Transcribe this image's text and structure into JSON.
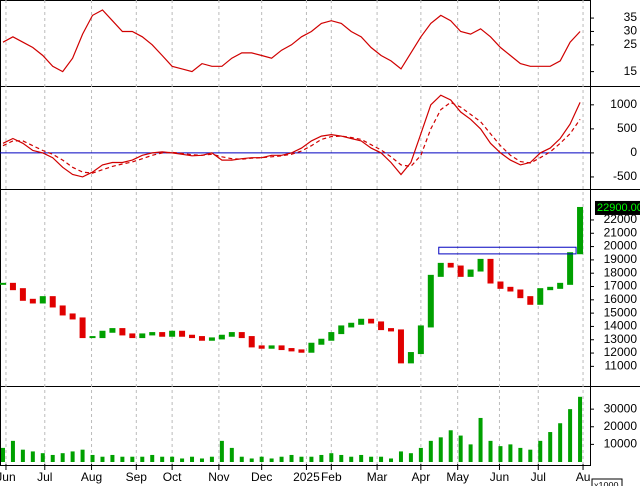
{
  "chart_data": [
    {
      "type": "line",
      "ylim": [
        10,
        41
      ],
      "yticks": [
        15,
        25,
        30,
        35
      ],
      "series": [
        {
          "color": "#d00000",
          "values": [
            26,
            28,
            26,
            24,
            21,
            17,
            15,
            20,
            29,
            36,
            38,
            34,
            30,
            30,
            28,
            25,
            21,
            17,
            16,
            15,
            18,
            17,
            17,
            20,
            22,
            22,
            21,
            20,
            23,
            25,
            28,
            30,
            33,
            34,
            33,
            30,
            28,
            24,
            21,
            19,
            16,
            22,
            28,
            33,
            36,
            34,
            30,
            29,
            31,
            28,
            24,
            21,
            18,
            17,
            17,
            17,
            19,
            26,
            30
          ]
        }
      ]
    },
    {
      "type": "line",
      "ylim": [
        -730,
        1350
      ],
      "yticks": [
        -500,
        0,
        500,
        1000
      ],
      "zero_line_color": "#0000c0",
      "series": [
        {
          "color": "#d00000",
          "values": [
            200,
            300,
            200,
            50,
            0,
            -100,
            -300,
            -450,
            -500,
            -400,
            -250,
            -200,
            -200,
            -150,
            -50,
            0,
            20,
            0,
            -30,
            -60,
            -50,
            0,
            -150,
            -150,
            -120,
            -100,
            -100,
            -50,
            -50,
            0,
            100,
            250,
            350,
            380,
            350,
            300,
            250,
            100,
            0,
            -200,
            -450,
            -200,
            400,
            1000,
            1200,
            1100,
            850,
            700,
            500,
            200,
            0,
            -150,
            -250,
            -200,
            0,
            100,
            300,
            600,
            1050
          ]
        },
        {
          "color": "#d00000",
          "dashed": true,
          "values": [
            150,
            250,
            250,
            150,
            50,
            -30,
            -150,
            -300,
            -400,
            -420,
            -350,
            -280,
            -230,
            -190,
            -120,
            -50,
            0,
            10,
            -10,
            -40,
            -50,
            -30,
            -80,
            -120,
            -130,
            -110,
            -100,
            -80,
            -60,
            -30,
            40,
            150,
            280,
            340,
            350,
            320,
            280,
            170,
            60,
            -80,
            -250,
            -280,
            -50,
            500,
            900,
            1050,
            950,
            800,
            650,
            400,
            150,
            -50,
            -180,
            -210,
            -100,
            20,
            200,
            400,
            700
          ]
        }
      ]
    },
    {
      "type": "candlestick",
      "ylim": [
        9600,
        24250
      ],
      "yticks": [
        11000,
        12000,
        13000,
        14000,
        15000,
        16000,
        17000,
        18000,
        19000,
        20000,
        21000,
        22000
      ],
      "up_color": "#00a000",
      "down_color": "#e00000",
      "values": [
        17200,
        16800,
        16000,
        15800,
        16200,
        15500,
        14900,
        14600,
        13200,
        13200,
        13600,
        13800,
        13400,
        13200,
        13400,
        13500,
        13300,
        13600,
        13300,
        13200,
        13000,
        13100,
        13300,
        13500,
        13200,
        12500,
        12400,
        12500,
        12300,
        12200,
        12100,
        12700,
        13000,
        13500,
        14000,
        14200,
        14500,
        14300,
        13800,
        13700,
        11300,
        12000,
        14000,
        17800,
        18700,
        18500,
        17800,
        18200,
        19000,
        17300,
        16900,
        16700,
        16200,
        15700,
        16800,
        16900,
        17200,
        19500,
        22900
      ],
      "last_value_label": "22900.00",
      "zone": {
        "from": 19450,
        "to": 19950,
        "x_from": 43.8,
        "x_to": 57.6,
        "color": "#0000c0"
      }
    },
    {
      "type": "bar",
      "ylim": [
        0,
        42000
      ],
      "yticks": [
        10000,
        20000,
        30000
      ],
      "color": "#00a000",
      "unit_label": "x1000",
      "values": [
        8000,
        12000,
        7000,
        6000,
        5000,
        4000,
        5000,
        6000,
        7000,
        4000,
        3000,
        4000,
        3000,
        3000,
        3000,
        4000,
        3000,
        3000,
        2000,
        3000,
        2000,
        3000,
        12000,
        8000,
        3000,
        2000,
        3000,
        2000,
        3000,
        4000,
        3000,
        3000,
        4000,
        5000,
        4000,
        3000,
        4000,
        3000,
        3000,
        2000,
        6000,
        5000,
        8000,
        12000,
        14000,
        18000,
        15000,
        10000,
        25000,
        12000,
        9000,
        10000,
        8000,
        7000,
        12000,
        17000,
        22000,
        30000,
        37000
      ],
      "xlim": [
        -0.3,
        59
      ],
      "xticks": [
        {
          "value": 0.3,
          "label": "Jun"
        },
        {
          "value": 4.2,
          "label": "Jul"
        },
        {
          "value": 8.9,
          "label": "Aug"
        },
        {
          "value": 13.4,
          "label": "Sep"
        },
        {
          "value": 17,
          "label": "Oct"
        },
        {
          "value": 21.7,
          "label": "Nov"
        },
        {
          "value": 26,
          "label": "Dec"
        },
        {
          "value": 30.5,
          "label": "2025"
        },
        {
          "value": 33,
          "label": "Feb"
        },
        {
          "value": 37.6,
          "label": "Mar"
        },
        {
          "value": 42,
          "label": "Apr"
        },
        {
          "value": 45.7,
          "label": "May"
        },
        {
          "value": 49.9,
          "label": "Jun"
        },
        {
          "value": 53.8,
          "label": "Jul"
        },
        {
          "value": 58.3,
          "label": "Au"
        }
      ]
    }
  ]
}
